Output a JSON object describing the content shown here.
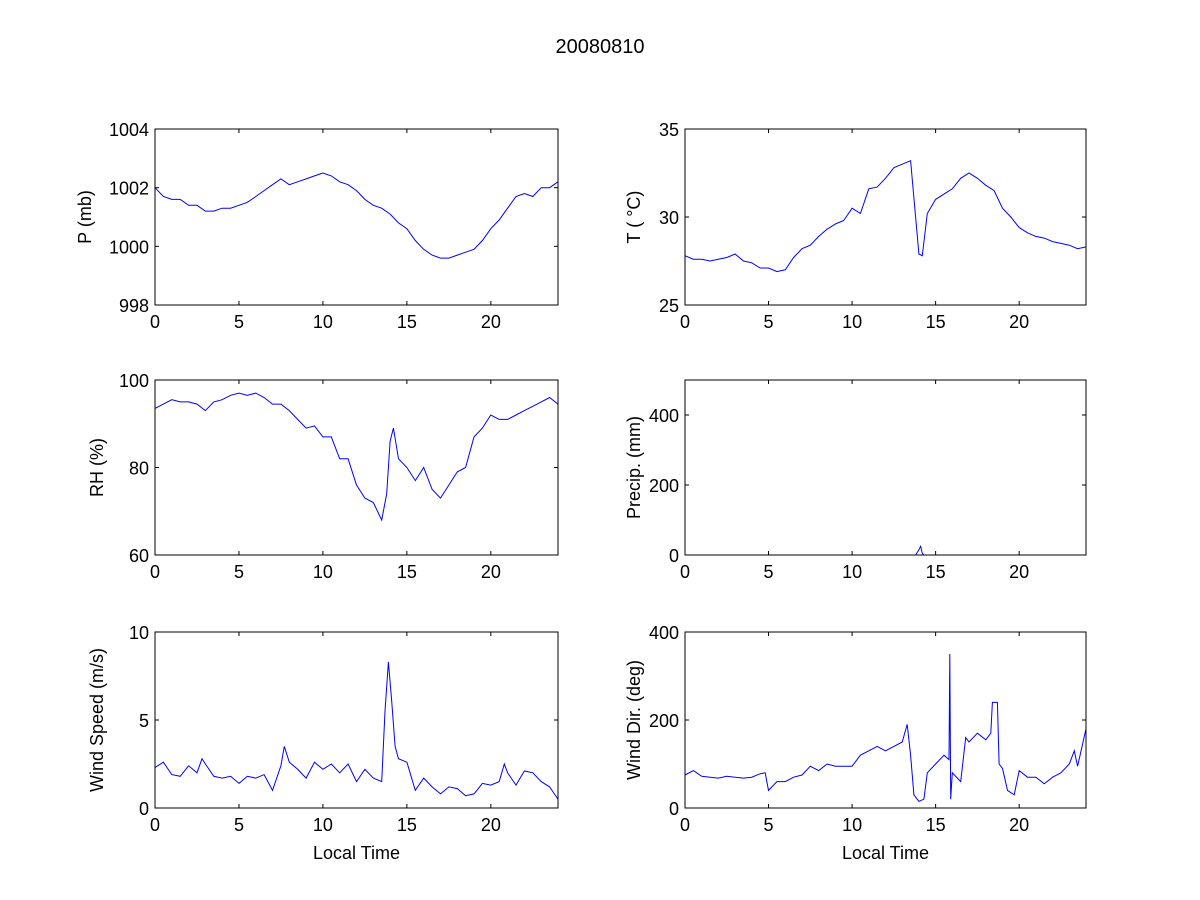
{
  "figure_title": "20080810",
  "chart_data": [
    {
      "type": "line",
      "title": "",
      "xlabel": "",
      "ylabel": "P (mb)",
      "xlim": [
        0,
        24
      ],
      "ylim": [
        998,
        1004
      ],
      "xticks": [
        0,
        5,
        10,
        15,
        20
      ],
      "yticks": [
        998,
        1000,
        1002,
        1004
      ],
      "color": "#0000ff",
      "x": [
        0,
        0.5,
        1,
        1.5,
        2,
        2.5,
        3,
        3.5,
        4,
        4.5,
        5,
        5.5,
        6,
        6.5,
        7,
        7.5,
        8,
        8.5,
        9,
        9.5,
        10,
        10.5,
        11,
        11.5,
        12,
        12.5,
        13,
        13.5,
        14,
        14.5,
        15,
        15.5,
        16,
        16.5,
        17,
        17.5,
        18,
        18.5,
        19,
        19.5,
        20,
        20.5,
        21,
        21.5,
        22,
        22.5,
        23,
        23.5,
        24
      ],
      "y": [
        1002.0,
        1001.7,
        1001.6,
        1001.6,
        1001.4,
        1001.4,
        1001.2,
        1001.2,
        1001.3,
        1001.3,
        1001.4,
        1001.5,
        1001.7,
        1001.9,
        1002.1,
        1002.3,
        1002.1,
        1002.2,
        1002.3,
        1002.4,
        1002.5,
        1002.4,
        1002.2,
        1002.1,
        1001.9,
        1001.6,
        1001.4,
        1001.3,
        1001.1,
        1000.8,
        1000.6,
        1000.2,
        999.9,
        999.7,
        999.6,
        999.6,
        999.7,
        999.8,
        999.9,
        1000.2,
        1000.6,
        1000.9,
        1001.3,
        1001.7,
        1001.8,
        1001.7,
        1002.0,
        1002.0,
        1002.2
      ]
    },
    {
      "type": "line",
      "title": "",
      "xlabel": "",
      "ylabel": "T ( °C)",
      "xlim": [
        0,
        24
      ],
      "ylim": [
        25,
        35
      ],
      "xticks": [
        0,
        5,
        10,
        15,
        20
      ],
      "yticks": [
        25,
        30,
        35
      ],
      "color": "#0000ff",
      "x": [
        0,
        0.5,
        1,
        1.5,
        2,
        2.5,
        3,
        3.5,
        4,
        4.5,
        5,
        5.5,
        6,
        6.5,
        7,
        7.5,
        8,
        8.5,
        9,
        9.5,
        10,
        10.5,
        11,
        11.5,
        12,
        12.5,
        13,
        13.5,
        13.8,
        14,
        14.2,
        14.5,
        15,
        15.5,
        16,
        16.5,
        17,
        17.5,
        18,
        18.5,
        19,
        19.5,
        20,
        20.5,
        21,
        21.5,
        22,
        22.5,
        23,
        23.5,
        24
      ],
      "y": [
        27.8,
        27.6,
        27.6,
        27.5,
        27.6,
        27.7,
        27.9,
        27.5,
        27.4,
        27.1,
        27.1,
        26.9,
        27.0,
        27.7,
        28.2,
        28.4,
        28.9,
        29.3,
        29.6,
        29.8,
        30.5,
        30.2,
        31.6,
        31.7,
        32.2,
        32.8,
        33.0,
        33.2,
        30.0,
        27.9,
        27.8,
        30.2,
        31.0,
        31.3,
        31.6,
        32.2,
        32.5,
        32.2,
        31.8,
        31.5,
        30.5,
        30.0,
        29.4,
        29.1,
        28.9,
        28.8,
        28.6,
        28.5,
        28.4,
        28.2,
        28.3
      ]
    },
    {
      "type": "line",
      "title": "",
      "xlabel": "",
      "ylabel": "RH (%)",
      "xlim": [
        0,
        24
      ],
      "ylim": [
        60,
        100
      ],
      "xticks": [
        0,
        5,
        10,
        15,
        20
      ],
      "yticks": [
        60,
        80,
        100
      ],
      "color": "#0000ff",
      "x": [
        0,
        0.5,
        1,
        1.5,
        2,
        2.5,
        3,
        3.5,
        4,
        4.5,
        5,
        5.5,
        6,
        6.5,
        7,
        7.5,
        8,
        8.5,
        9,
        9.5,
        10,
        10.5,
        11,
        11.5,
        12,
        12.5,
        13,
        13.5,
        13.8,
        14,
        14.2,
        14.5,
        15,
        15.5,
        16,
        16.5,
        17,
        17.5,
        18,
        18.5,
        19,
        19.5,
        20,
        20.5,
        21,
        21.5,
        22,
        22.5,
        23,
        23.5,
        24
      ],
      "y": [
        93.5,
        94.5,
        95.5,
        95,
        95,
        94.5,
        93,
        95,
        95.5,
        96.5,
        97,
        96.5,
        97,
        96,
        94.5,
        94.5,
        93,
        91,
        89,
        89.5,
        87,
        87,
        82,
        82,
        76,
        73,
        72,
        68,
        74,
        86,
        89,
        82,
        80,
        77,
        80,
        75,
        73,
        76,
        79,
        80,
        87,
        89,
        92,
        91,
        91,
        92,
        93,
        94,
        95,
        96,
        94.5
      ]
    },
    {
      "type": "line",
      "title": "",
      "xlabel": "",
      "ylabel": "Precip. (mm)",
      "xlim": [
        0,
        24
      ],
      "ylim": [
        0,
        500
      ],
      "xticks": [
        0,
        5,
        10,
        15,
        20
      ],
      "yticks": [
        0,
        200,
        400
      ],
      "color": "#0000ff",
      "x": [
        0,
        13.8,
        14.0,
        14.1,
        14.2,
        14.3,
        24
      ],
      "y": [
        0,
        0,
        15,
        25,
        5,
        0,
        0
      ]
    },
    {
      "type": "line",
      "title": "",
      "xlabel": "Local Time",
      "ylabel": "Wind Speed (m/s)",
      "xlim": [
        0,
        24
      ],
      "ylim": [
        0,
        10
      ],
      "xticks": [
        0,
        5,
        10,
        15,
        20
      ],
      "yticks": [
        0,
        5,
        10
      ],
      "color": "#0000ff",
      "x": [
        0,
        0.5,
        1,
        1.5,
        2,
        2.5,
        2.8,
        3,
        3.5,
        4,
        4.5,
        5,
        5.5,
        6,
        6.5,
        7,
        7.5,
        7.7,
        8,
        8.5,
        9,
        9.5,
        10,
        10.5,
        11,
        11.5,
        12,
        12.5,
        13,
        13.5,
        13.7,
        13.9,
        14.1,
        14.3,
        14.5,
        15,
        15.5,
        16,
        16.5,
        17,
        17.5,
        18,
        18.5,
        19,
        19.5,
        20,
        20.5,
        20.8,
        21,
        21.5,
        22,
        22.5,
        23,
        23.5,
        24
      ],
      "y": [
        2.3,
        2.6,
        1.9,
        1.8,
        2.4,
        2.0,
        2.8,
        2.5,
        1.8,
        1.7,
        1.8,
        1.4,
        1.8,
        1.7,
        1.9,
        1.0,
        2.4,
        3.5,
        2.6,
        2.2,
        1.7,
        2.6,
        2.2,
        2.5,
        2.0,
        2.5,
        1.5,
        2.2,
        1.7,
        1.5,
        5.5,
        8.3,
        6.0,
        3.5,
        2.8,
        2.6,
        1.0,
        1.7,
        1.2,
        0.8,
        1.2,
        1.1,
        0.7,
        0.8,
        1.4,
        1.3,
        1.5,
        2.5,
        2.0,
        1.3,
        2.1,
        2.0,
        1.5,
        1.2,
        0.5
      ]
    },
    {
      "type": "line",
      "title": "",
      "xlabel": "Local Time",
      "ylabel": "Wind Dir. (deg)",
      "xlim": [
        0,
        24
      ],
      "ylim": [
        0,
        400
      ],
      "xticks": [
        0,
        5,
        10,
        15,
        20
      ],
      "yticks": [
        0,
        200,
        400
      ],
      "color": "#0000ff",
      "x": [
        0,
        0.5,
        1,
        1.5,
        2,
        2.5,
        3,
        3.5,
        4,
        4.5,
        4.8,
        5,
        5.5,
        6,
        6.5,
        7,
        7.5,
        8,
        8.5,
        9,
        9.5,
        10,
        10.5,
        11,
        11.5,
        12,
        12.5,
        13,
        13.3,
        13.5,
        13.7,
        14,
        14.3,
        14.5,
        15,
        15.5,
        15.8,
        15.85,
        15.9,
        16,
        16.5,
        16.8,
        17,
        17.5,
        18,
        18.3,
        18.4,
        18.7,
        18.8,
        19,
        19.3,
        19.7,
        20,
        20.5,
        21,
        21.5,
        22,
        22.5,
        23,
        23.3,
        23.5,
        24
      ],
      "y": [
        75,
        85,
        72,
        70,
        68,
        72,
        70,
        68,
        70,
        78,
        80,
        40,
        60,
        60,
        70,
        75,
        95,
        85,
        100,
        95,
        95,
        95,
        120,
        130,
        140,
        130,
        140,
        150,
        190,
        120,
        30,
        15,
        20,
        80,
        100,
        120,
        110,
        350,
        20,
        80,
        60,
        160,
        150,
        170,
        155,
        170,
        240,
        240,
        100,
        90,
        40,
        30,
        85,
        70,
        70,
        55,
        70,
        80,
        100,
        130,
        95,
        180
      ]
    }
  ]
}
